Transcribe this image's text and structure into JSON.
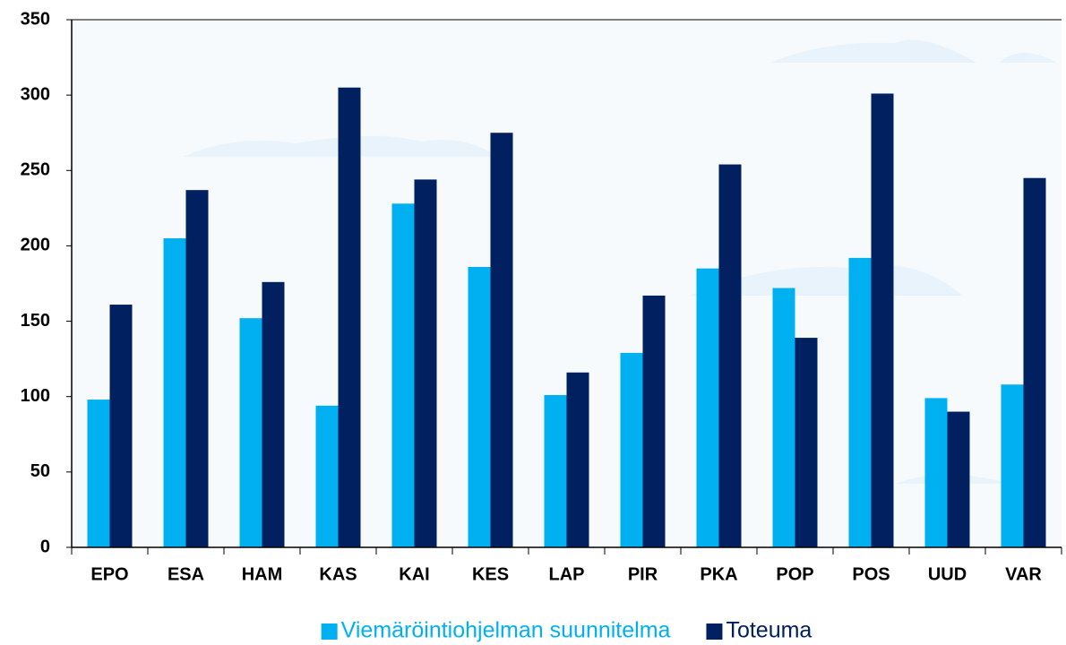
{
  "chart_data": {
    "type": "bar",
    "categories": [
      "EPO",
      "ESA",
      "HAM",
      "KAS",
      "KAI",
      "KES",
      "LAP",
      "PIR",
      "PKA",
      "POP",
      "POS",
      "UUD",
      "VAR"
    ],
    "series": [
      {
        "name": "Viemäröintiohjelman suunnitelma",
        "color": "#00b0f0",
        "values": [
          98,
          205,
          152,
          94,
          228,
          186,
          101,
          129,
          185,
          172,
          192,
          99,
          108
        ]
      },
      {
        "name": "Toteuma",
        "color": "#002060",
        "values": [
          161,
          237,
          176,
          305,
          244,
          275,
          116,
          167,
          254,
          139,
          301,
          90,
          245
        ]
      }
    ],
    "ylim": [
      0,
      350
    ],
    "yticks": [
      0,
      50,
      100,
      150,
      200,
      250,
      300,
      350
    ],
    "grid": false,
    "legend": "bottom"
  }
}
